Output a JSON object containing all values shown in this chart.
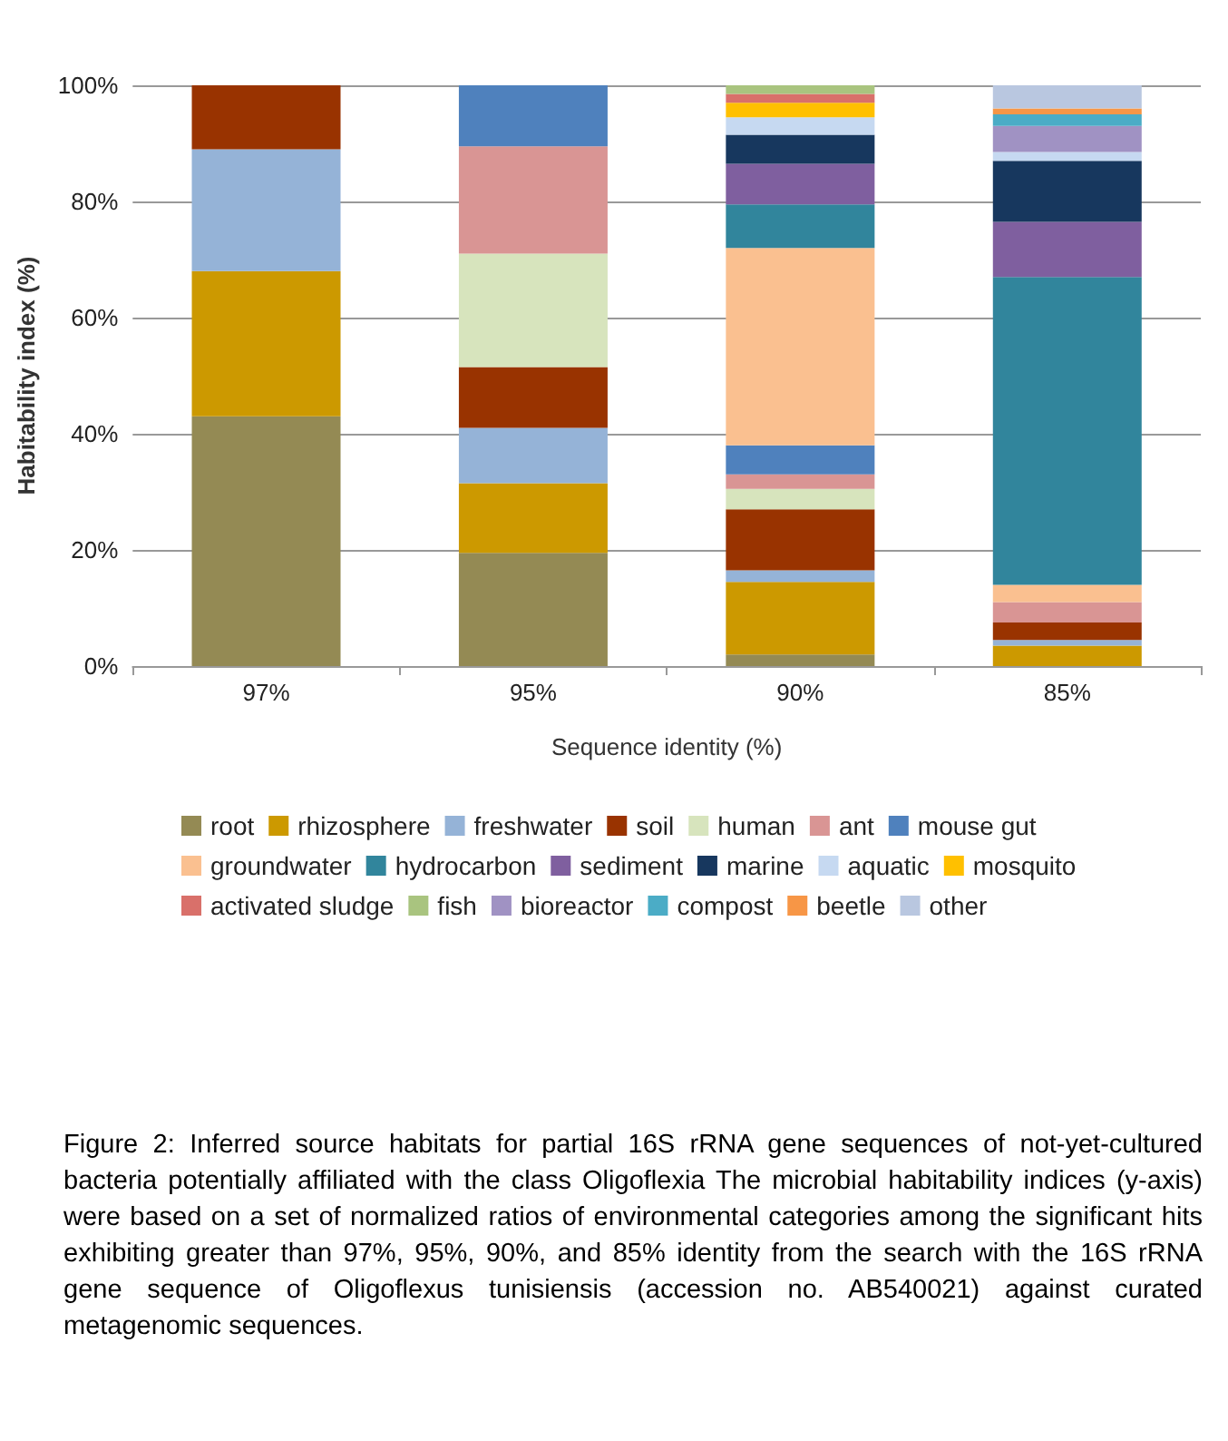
{
  "chart_data": {
    "type": "bar",
    "stacked": true,
    "xlabel": "Sequence identity (%)",
    "ylabel": "Habitability index (%)",
    "categories": [
      "97%",
      "95%",
      "90%",
      "85%"
    ],
    "ylim": [
      0,
      100
    ],
    "yticks": [
      {
        "value": 0,
        "label": "0%"
      },
      {
        "value": 20,
        "label": "20%"
      },
      {
        "value": 40,
        "label": "40%"
      },
      {
        "value": 60,
        "label": "60%"
      },
      {
        "value": 80,
        "label": "80%"
      },
      {
        "value": 100,
        "label": "100%"
      }
    ],
    "grid": "y",
    "legend": "bottom",
    "series": [
      {
        "name": "root",
        "color": "#948a54",
        "values": [
          43,
          19.5,
          2,
          0
        ]
      },
      {
        "name": "rhizosphere",
        "color": "#cc9900",
        "values": [
          25,
          12,
          12.5,
          3.5
        ]
      },
      {
        "name": "freshwater",
        "color": "#95b3d7",
        "values": [
          21,
          9.5,
          2,
          1
        ]
      },
      {
        "name": "soil",
        "color": "#993300",
        "values": [
          11,
          10.5,
          10.5,
          3
        ]
      },
      {
        "name": "human",
        "color": "#d7e4bd",
        "values": [
          0,
          19.5,
          3.5,
          0
        ]
      },
      {
        "name": "ant",
        "color": "#d99594",
        "values": [
          0,
          18.5,
          2.5,
          3.5
        ]
      },
      {
        "name": "mouse gut",
        "color": "#4f81bd",
        "values": [
          0,
          10.5,
          5,
          0
        ]
      },
      {
        "name": "groundwater",
        "color": "#fac090",
        "values": [
          0,
          0,
          34,
          3
        ]
      },
      {
        "name": "hydrocarbon",
        "color": "#31859c",
        "values": [
          0,
          0,
          7.5,
          53
        ]
      },
      {
        "name": "sediment",
        "color": "#7f5f9f",
        "values": [
          0,
          0,
          7,
          9.5
        ]
      },
      {
        "name": "marine",
        "color": "#17375e",
        "values": [
          0,
          0,
          5,
          10.5
        ]
      },
      {
        "name": "aquatic",
        "color": "#c6d9f1",
        "values": [
          0,
          0,
          3,
          1.5
        ]
      },
      {
        "name": "mosquito",
        "color": "#ffc000",
        "values": [
          0,
          0,
          2.5,
          0
        ]
      },
      {
        "name": "activated sludge",
        "color": "#d9706a",
        "values": [
          0,
          0,
          1.5,
          0
        ]
      },
      {
        "name": "fish",
        "color": "#a9c47f",
        "values": [
          0,
          0,
          1.5,
          0
        ]
      },
      {
        "name": "bioreactor",
        "color": "#a092c3",
        "values": [
          0,
          0,
          0,
          4.5
        ]
      },
      {
        "name": "compost",
        "color": "#4bacc6",
        "values": [
          0,
          0,
          0,
          2
        ]
      },
      {
        "name": "beetle",
        "color": "#f79646",
        "values": [
          0,
          0,
          0,
          1
        ]
      },
      {
        "name": "other",
        "color": "#b9c7e0",
        "values": [
          0,
          0,
          0,
          4
        ]
      }
    ],
    "annotations": [
      "Figure 2: Inferred source habitats for partial 16S rRNA gene sequences of not-yet-cultured bacteria potentially affiliated with the class Oligoflexia The microbial habitability indices (y-axis) were based on a set of normalized ratios of environmental categories among the significant hits exhibiting greater than 97%, 95%, 90%, and 85% identity from the search with the 16S rRNA gene sequence of Oligoflexus tunisiensis (accession no. AB540021) against curated metagenomic sequences."
    ]
  }
}
